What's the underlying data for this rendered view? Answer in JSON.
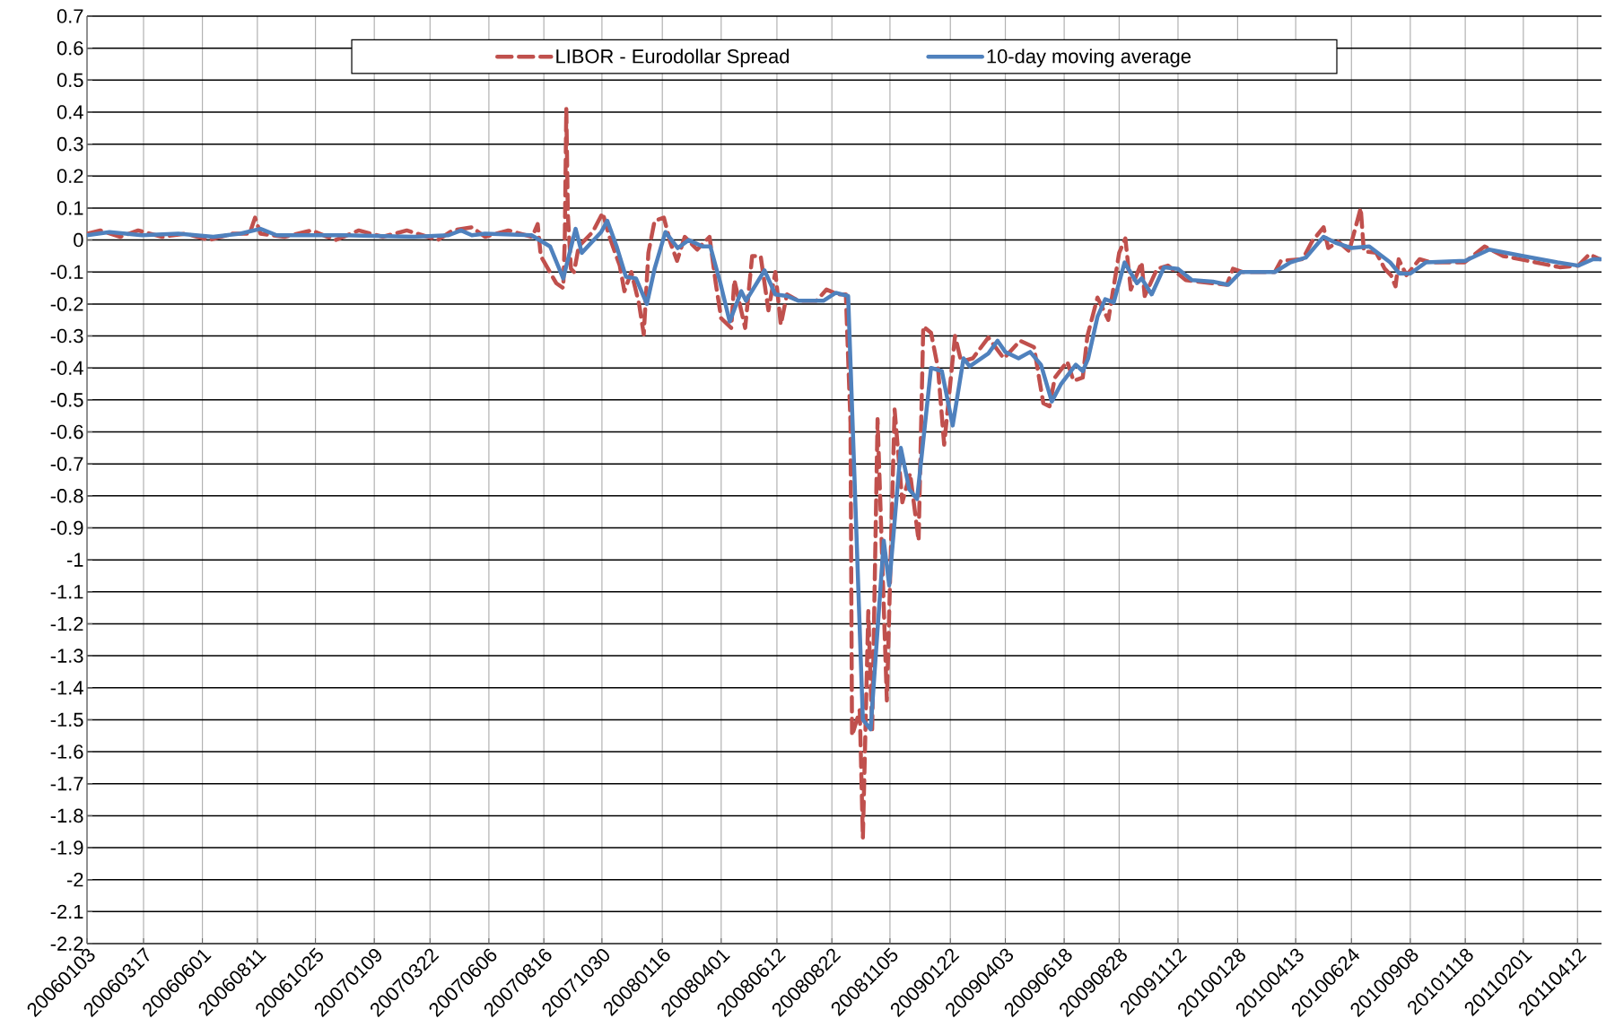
{
  "chart_data": {
    "type": "line",
    "xlim": [
      "2006-01-03",
      "2011-05-13"
    ],
    "ylim": [
      -2.2,
      0.7
    ],
    "yticks": [
      -2.2,
      -2.1,
      -2,
      -1.9,
      -1.8,
      -1.7,
      -1.6,
      -1.5,
      -1.4,
      -1.3,
      -1.2,
      -1.1,
      -1,
      -0.9,
      -0.8,
      -0.7,
      -0.6,
      -0.5,
      -0.4,
      -0.3,
      -0.2,
      -0.1,
      0,
      0.1,
      0.2,
      0.3,
      0.4,
      0.5,
      0.6,
      0.7
    ],
    "xticks": [
      {
        "value": "2006-01-03",
        "label": "20060103"
      },
      {
        "value": "2006-03-17",
        "label": "20060317"
      },
      {
        "value": "2006-06-01",
        "label": "20060601"
      },
      {
        "value": "2006-08-11",
        "label": "20060811"
      },
      {
        "value": "2006-10-25",
        "label": "20061025"
      },
      {
        "value": "2007-01-09",
        "label": "20070109"
      },
      {
        "value": "2007-03-22",
        "label": "20070322"
      },
      {
        "value": "2007-06-06",
        "label": "20070606"
      },
      {
        "value": "2007-08-16",
        "label": "20070816"
      },
      {
        "value": "2007-10-30",
        "label": "20071030"
      },
      {
        "value": "2008-01-16",
        "label": "20080116"
      },
      {
        "value": "2008-04-01",
        "label": "20080401"
      },
      {
        "value": "2008-06-12",
        "label": "20080612"
      },
      {
        "value": "2008-08-22",
        "label": "20080822"
      },
      {
        "value": "2008-11-05",
        "label": "20081105"
      },
      {
        "value": "2009-01-22",
        "label": "20090122"
      },
      {
        "value": "2009-04-03",
        "label": "20090403"
      },
      {
        "value": "2009-06-18",
        "label": "20090618"
      },
      {
        "value": "2009-08-28",
        "label": "20090828"
      },
      {
        "value": "2009-11-12",
        "label": "20091112"
      },
      {
        "value": "2010-01-28",
        "label": "20100128"
      },
      {
        "value": "2010-04-13",
        "label": "20100413"
      },
      {
        "value": "2010-06-24",
        "label": "20100624"
      },
      {
        "value": "2010-09-08",
        "label": "20100908"
      },
      {
        "value": "2010-11-18",
        "label": "20101118"
      },
      {
        "value": "2011-02-01",
        "label": "20110201"
      },
      {
        "value": "2011-04-12",
        "label": "20110412"
      }
    ],
    "grid": true,
    "legend": "top",
    "series": [
      {
        "name": "LIBOR - Eurodollar Spread",
        "color": "#c0504d",
        "line_style": "dashed",
        "x": [
          "2006-01-03",
          "2006-01-20",
          "2006-02-15",
          "2006-03-10",
          "2006-04-10",
          "2006-05-10",
          "2006-06-10",
          "2006-07-10",
          "2006-08-01",
          "2006-08-08",
          "2006-08-15",
          "2006-09-15",
          "2006-10-20",
          "2006-11-20",
          "2006-12-20",
          "2007-01-20",
          "2007-02-20",
          "2007-04-01",
          "2007-04-20",
          "2007-05-15",
          "2007-06-01",
          "2007-07-01",
          "2007-08-01",
          "2007-08-08",
          "2007-08-12",
          "2007-09-01",
          "2007-09-10",
          "2007-09-12",
          "2007-09-14",
          "2007-09-16",
          "2007-09-20",
          "2007-09-24",
          "2007-09-30",
          "2007-10-18",
          "2007-10-31",
          "2007-11-08",
          "2007-11-22",
          "2007-11-28",
          "2007-12-07",
          "2007-12-17",
          "2007-12-23",
          "2007-12-29",
          "2008-01-06",
          "2008-01-18",
          "2008-01-26",
          "2008-02-04",
          "2008-02-14",
          "2008-03-01",
          "2008-03-17",
          "2008-03-25",
          "2008-04-01",
          "2008-04-14",
          "2008-04-18",
          "2008-05-02",
          "2008-05-11",
          "2008-05-22",
          "2008-06-01",
          "2008-06-10",
          "2008-06-17",
          "2008-06-25",
          "2008-07-10",
          "2008-08-02",
          "2008-08-15",
          "2008-08-30",
          "2008-09-09",
          "2008-09-15",
          "2008-09-17",
          "2008-09-27",
          "2008-10-01",
          "2008-10-08",
          "2008-10-13",
          "2008-10-20",
          "2008-11-01",
          "2008-11-11",
          "2008-11-21",
          "2008-12-01",
          "2008-12-12",
          "2008-12-18",
          "2008-12-28",
          "2009-01-06",
          "2009-01-14",
          "2009-01-28",
          "2009-02-05",
          "2009-02-20",
          "2009-03-12",
          "2009-04-01",
          "2009-04-22",
          "2009-05-10",
          "2009-05-22",
          "2009-05-30",
          "2009-06-06",
          "2009-06-22",
          "2009-06-30",
          "2009-07-12",
          "2009-07-18",
          "2009-07-31",
          "2009-08-14",
          "2009-08-28",
          "2009-09-05",
          "2009-09-12",
          "2009-09-26",
          "2009-09-30",
          "2009-10-16",
          "2009-10-30",
          "2009-11-22",
          "2009-12-07",
          "2010-01-14",
          "2010-01-22",
          "2010-02-03",
          "2010-03-17",
          "2010-03-25",
          "2010-04-22",
          "2010-05-04",
          "2010-05-19",
          "2010-05-25",
          "2010-06-07",
          "2010-06-21",
          "2010-07-06",
          "2010-07-10",
          "2010-07-26",
          "2010-08-06",
          "2010-08-14",
          "2010-08-20",
          "2010-08-24",
          "2010-09-03",
          "2010-09-20",
          "2010-10-05",
          "2010-11-17",
          "2010-12-13",
          "2011-01-06",
          "2011-02-07",
          "2011-03-20",
          "2011-04-13",
          "2011-04-27",
          "2011-05-11"
        ],
        "values": [
          0.02,
          0.03,
          0.01,
          0.03,
          0.01,
          0.02,
          0.0,
          0.02,
          0.02,
          0.07,
          0.02,
          0.01,
          0.03,
          0.0,
          0.03,
          0.01,
          0.03,
          0.0,
          0.03,
          0.04,
          0.01,
          0.03,
          0.01,
          0.05,
          -0.05,
          -0.135,
          -0.15,
          0.0,
          0.41,
          0.08,
          -0.09,
          -0.1,
          -0.02,
          0.025,
          0.085,
          0.015,
          -0.08,
          -0.16,
          -0.1,
          -0.2,
          -0.295,
          -0.04,
          0.06,
          0.07,
          -0.005,
          -0.065,
          0.01,
          -0.03,
          0.01,
          -0.135,
          -0.245,
          -0.275,
          -0.125,
          -0.275,
          -0.05,
          -0.05,
          -0.22,
          -0.1,
          -0.265,
          -0.17,
          -0.19,
          -0.19,
          -0.155,
          -0.17,
          -0.17,
          -0.57,
          -1.55,
          -1.47,
          -1.87,
          -1.16,
          -1.53,
          -0.56,
          -1.44,
          -0.53,
          -0.82,
          -0.73,
          -0.94,
          -0.27,
          -0.29,
          -0.4,
          -0.64,
          -0.3,
          -0.38,
          -0.37,
          -0.305,
          -0.37,
          -0.315,
          -0.335,
          -0.51,
          -0.52,
          -0.43,
          -0.38,
          -0.44,
          -0.43,
          -0.3,
          -0.18,
          -0.25,
          -0.04,
          0.005,
          -0.155,
          -0.07,
          -0.175,
          -0.09,
          -0.08,
          -0.125,
          -0.13,
          -0.14,
          -0.09,
          -0.1,
          -0.1,
          -0.065,
          -0.06,
          -0.005,
          0.04,
          -0.025,
          -0.005,
          -0.035,
          0.1,
          -0.035,
          -0.04,
          -0.09,
          -0.11,
          -0.145,
          -0.06,
          -0.11,
          -0.06,
          -0.07,
          -0.07,
          -0.02,
          -0.05,
          -0.065,
          -0.085,
          -0.08,
          -0.045,
          -0.06
        ]
      },
      {
        "name": "10-day moving average",
        "color": "#4f81bd",
        "line_style": "solid",
        "x": [
          "2006-01-03",
          "2006-02-01",
          "2006-03-15",
          "2006-05-01",
          "2006-06-15",
          "2006-07-20",
          "2006-08-15",
          "2006-09-05",
          "2006-12-01",
          "2007-03-01",
          "2007-04-15",
          "2007-05-01",
          "2007-05-15",
          "2007-06-01",
          "2007-07-31",
          "2007-08-24",
          "2007-09-10",
          "2007-09-26",
          "2007-10-04",
          "2007-10-29",
          "2007-11-06",
          "2007-11-18",
          "2007-11-30",
          "2007-12-13",
          "2007-12-27",
          "2008-01-06",
          "2008-01-20",
          "2008-02-05",
          "2008-02-19",
          "2008-03-08",
          "2008-03-18",
          "2008-03-31",
          "2008-04-12",
          "2008-04-27",
          "2008-05-03",
          "2008-05-27",
          "2008-06-10",
          "2008-06-25",
          "2008-07-10",
          "2008-08-11",
          "2008-08-27",
          "2008-09-12",
          "2008-09-20",
          "2008-10-01",
          "2008-10-11",
          "2008-10-28",
          "2008-11-04",
          "2008-11-19",
          "2008-11-30",
          "2008-12-10",
          "2008-12-28",
          "2009-01-11",
          "2009-01-25",
          "2009-02-08",
          "2009-02-16",
          "2009-03-12",
          "2009-03-24",
          "2009-04-03",
          "2009-04-20",
          "2009-05-05",
          "2009-05-19",
          "2009-06-02",
          "2009-06-14",
          "2009-07-03",
          "2009-07-12",
          "2009-07-19",
          "2009-07-31",
          "2009-08-10",
          "2009-08-21",
          "2009-09-04",
          "2009-09-20",
          "2009-09-26",
          "2009-10-09",
          "2009-10-25",
          "2009-11-12",
          "2009-11-30",
          "2009-12-27",
          "2010-01-16",
          "2010-02-01",
          "2010-03-17",
          "2010-04-06",
          "2010-04-26",
          "2010-05-19",
          "2010-06-05",
          "2010-06-24",
          "2010-07-17",
          "2010-08-13",
          "2010-08-25",
          "2010-09-08",
          "2010-09-28",
          "2010-11-18",
          "2010-12-19",
          "2011-02-01",
          "2011-03-17",
          "2011-04-13",
          "2011-05-02",
          "2011-05-12"
        ],
        "values": [
          0.015,
          0.025,
          0.015,
          0.02,
          0.01,
          0.02,
          0.035,
          0.015,
          0.015,
          0.01,
          0.015,
          0.03,
          0.015,
          0.02,
          0.015,
          -0.02,
          -0.12,
          0.035,
          -0.04,
          0.025,
          0.06,
          -0.02,
          -0.115,
          -0.12,
          -0.2,
          -0.09,
          0.025,
          -0.025,
          0.0,
          -0.02,
          -0.02,
          -0.135,
          -0.255,
          -0.16,
          -0.19,
          -0.095,
          -0.17,
          -0.175,
          -0.19,
          -0.19,
          -0.165,
          -0.175,
          -0.73,
          -1.5,
          -1.53,
          -0.94,
          -1.08,
          -0.65,
          -0.78,
          -0.81,
          -0.4,
          -0.41,
          -0.58,
          -0.37,
          -0.395,
          -0.355,
          -0.315,
          -0.35,
          -0.37,
          -0.35,
          -0.39,
          -0.505,
          -0.45,
          -0.39,
          -0.41,
          -0.37,
          -0.24,
          -0.185,
          -0.195,
          -0.07,
          -0.135,
          -0.12,
          -0.17,
          -0.085,
          -0.09,
          -0.125,
          -0.13,
          -0.14,
          -0.1,
          -0.1,
          -0.07,
          -0.055,
          0.01,
          -0.01,
          -0.025,
          -0.02,
          -0.07,
          -0.105,
          -0.105,
          -0.07,
          -0.065,
          -0.03,
          -0.05,
          -0.07,
          -0.08,
          -0.06,
          -0.06
        ]
      }
    ]
  }
}
